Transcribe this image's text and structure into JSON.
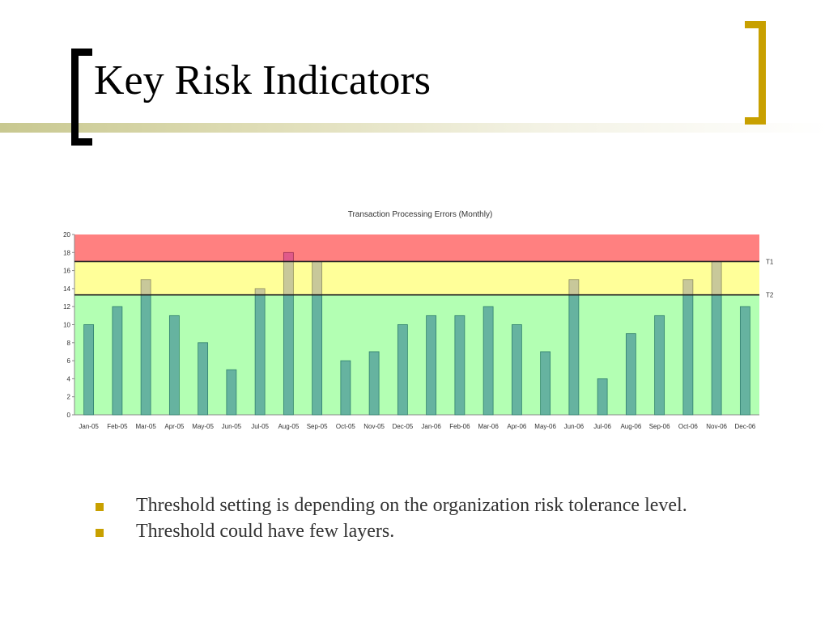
{
  "slide": {
    "title": "Key Risk Indicators",
    "bullets": [
      "Threshold setting is depending on the organization risk tolerance level.",
      "Threshold could have few layers."
    ]
  },
  "colors": {
    "red_zone": "#ff8080",
    "yellow_zone": "#ffff99",
    "green_zone": "#b3ffb3",
    "bar_normal": "#66b3a0",
    "bar_yellow": "#c8c89a",
    "bar_red": "#e05a8a",
    "bullet": "#c8a000",
    "right_bracket": "#c8a000"
  },
  "chart_data": {
    "type": "bar",
    "title": "Transaction Processing Errors (Monthly)",
    "xlabel": "",
    "ylabel": "",
    "ylim": [
      0,
      20
    ],
    "yticks": [
      0,
      2,
      4,
      6,
      8,
      10,
      12,
      14,
      16,
      18,
      20
    ],
    "categories": [
      "Jan-05",
      "Feb-05",
      "Mar-05",
      "Apr-05",
      "May-05",
      "Jun-05",
      "Jul-05",
      "Aug-05",
      "Sep-05",
      "Oct-05",
      "Nov-05",
      "Dec-05",
      "Jan-06",
      "Feb-06",
      "Mar-06",
      "Apr-06",
      "May-06",
      "Jun-06",
      "Jul-06",
      "Aug-06",
      "Sep-06",
      "Oct-06",
      "Nov-06",
      "Dec-06"
    ],
    "values": [
      10,
      12,
      15,
      11,
      8,
      5,
      14,
      18,
      17,
      6,
      7,
      10,
      11,
      11,
      12,
      10,
      7,
      15,
      4,
      9,
      11,
      15,
      17,
      12
    ],
    "thresholds": [
      {
        "label": "T1",
        "value": 17
      },
      {
        "label": "T2",
        "value": 13.3
      }
    ],
    "zones": [
      {
        "from": 0,
        "to": 13.3,
        "color": "#b3ffb3"
      },
      {
        "from": 13.3,
        "to": 17,
        "color": "#ffff99"
      },
      {
        "from": 17,
        "to": 20,
        "color": "#ff8080"
      }
    ],
    "grid": false,
    "legend": "none"
  }
}
